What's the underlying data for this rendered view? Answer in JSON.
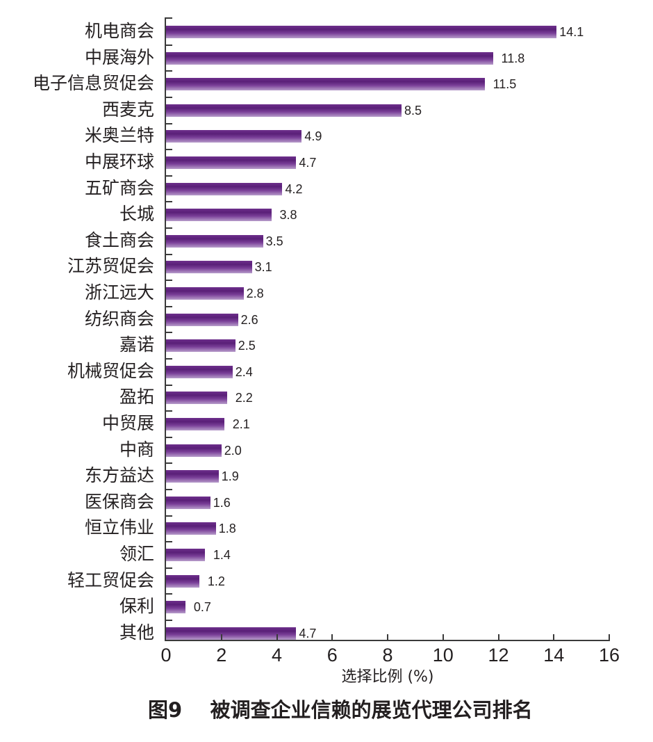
{
  "figure": {
    "caption_number": "图9",
    "caption_text": "被调查企业信赖的展览代理公司排名"
  },
  "chart_data": {
    "type": "bar",
    "orientation": "horizontal",
    "title": "图9  被调查企业信赖的展览代理公司排名",
    "xlabel": "选择比例 (%)",
    "ylabel": "",
    "xlim": [
      0,
      16
    ],
    "x_ticks": [
      "0",
      "2",
      "4",
      "6",
      "8",
      "10",
      "12",
      "14",
      "16"
    ],
    "grid": false,
    "legend": null,
    "bar_color": "#5a1f78",
    "categories": [
      "机电商会",
      "中展海外",
      "电子信息贸促会",
      "西麦克",
      "米奥兰特",
      "中展环球",
      "五矿商会",
      "长城",
      "食土商会",
      "江苏贸促会",
      "浙江远大",
      "纺织商会",
      "嘉诺",
      "机械贸促会",
      "盈拓",
      "中贸展",
      "中商",
      "东方益达",
      "医保商会",
      "恒立伟业",
      "领汇",
      "轻工贸促会",
      "保利",
      "其他"
    ],
    "values": [
      14.1,
      11.8,
      11.5,
      8.5,
      4.9,
      4.7,
      4.2,
      3.8,
      3.5,
      3.1,
      2.8,
      2.6,
      2.5,
      2.4,
      2.2,
      2.1,
      2.0,
      1.9,
      1.6,
      1.8,
      1.4,
      1.2,
      0.7,
      4.7
    ],
    "value_labels": [
      "14.1",
      "11.8",
      "11.5",
      "8.5",
      "4.9",
      "4.7",
      "4.2",
      "3.8",
      "3.5",
      "3.1",
      "2.8",
      "2.6",
      "2.5",
      "2.4",
      "2.2",
      "2.1",
      "2.0",
      "1.9",
      "1.6",
      "1.8",
      "1.4",
      "1.2",
      "0.7",
      "4.7"
    ]
  }
}
